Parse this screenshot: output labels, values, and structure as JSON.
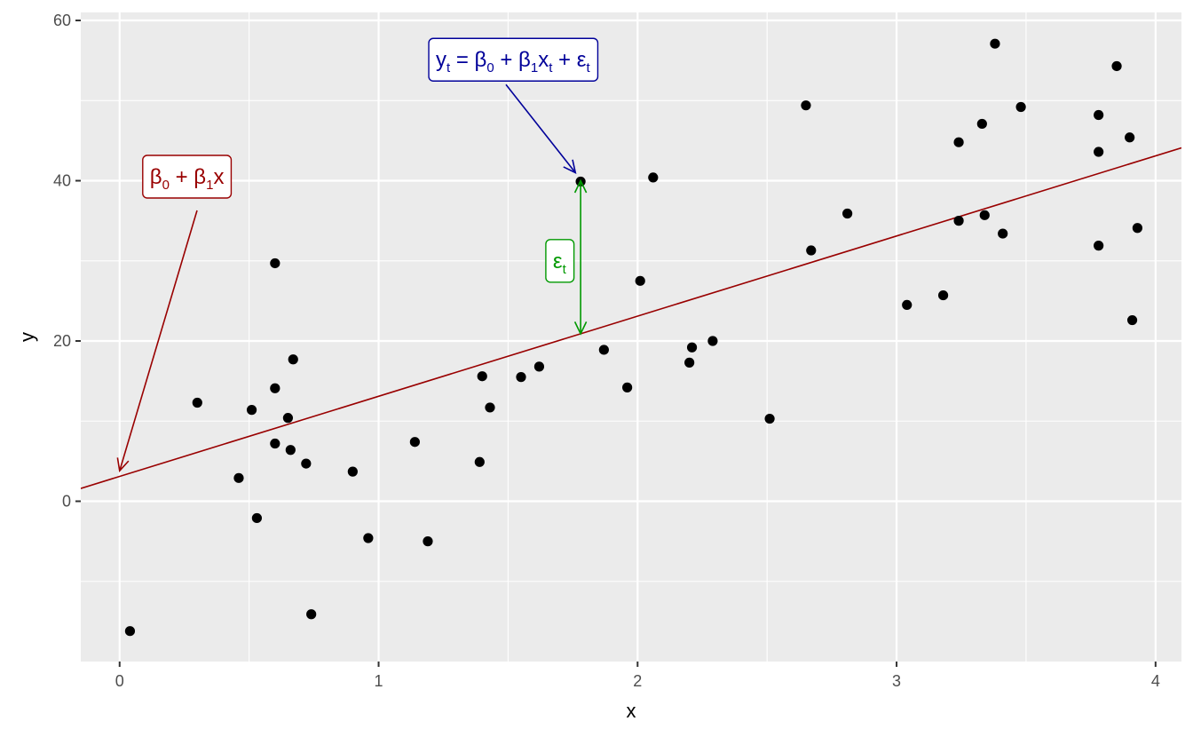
{
  "chart_data": {
    "type": "scatter",
    "title": "",
    "xlabel": "x",
    "ylabel": "y",
    "xlim": [
      -0.15,
      4.1
    ],
    "ylim": [
      -20,
      61
    ],
    "x_ticks": [
      0,
      1,
      2,
      3,
      4
    ],
    "y_ticks": [
      0,
      20,
      40,
      60
    ],
    "grid": true,
    "points": [
      {
        "x": 0.04,
        "y": -16.2
      },
      {
        "x": 0.3,
        "y": 12.3
      },
      {
        "x": 0.46,
        "y": 2.9
      },
      {
        "x": 0.51,
        "y": 11.4
      },
      {
        "x": 0.53,
        "y": -2.1
      },
      {
        "x": 0.6,
        "y": 29.7
      },
      {
        "x": 0.6,
        "y": 14.1
      },
      {
        "x": 0.6,
        "y": 7.2
      },
      {
        "x": 0.65,
        "y": 10.4
      },
      {
        "x": 0.66,
        "y": 6.4
      },
      {
        "x": 0.67,
        "y": 17.7
      },
      {
        "x": 0.72,
        "y": 4.7
      },
      {
        "x": 0.74,
        "y": -14.1
      },
      {
        "x": 0.9,
        "y": 3.7
      },
      {
        "x": 0.96,
        "y": -4.6
      },
      {
        "x": 1.14,
        "y": 7.4
      },
      {
        "x": 1.19,
        "y": -5.0
      },
      {
        "x": 1.39,
        "y": 4.9
      },
      {
        "x": 1.4,
        "y": 15.6
      },
      {
        "x": 1.43,
        "y": 11.7
      },
      {
        "x": 1.55,
        "y": 15.5
      },
      {
        "x": 1.62,
        "y": 16.8
      },
      {
        "x": 1.78,
        "y": 39.9
      },
      {
        "x": 1.87,
        "y": 18.9
      },
      {
        "x": 1.96,
        "y": 14.2
      },
      {
        "x": 2.01,
        "y": 27.5
      },
      {
        "x": 2.06,
        "y": 40.4
      },
      {
        "x": 2.2,
        "y": 17.3
      },
      {
        "x": 2.21,
        "y": 19.2
      },
      {
        "x": 2.29,
        "y": 20.0
      },
      {
        "x": 2.51,
        "y": 10.3
      },
      {
        "x": 2.65,
        "y": 49.4
      },
      {
        "x": 2.67,
        "y": 31.3
      },
      {
        "x": 2.81,
        "y": 35.9
      },
      {
        "x": 3.04,
        "y": 24.5
      },
      {
        "x": 3.18,
        "y": 25.7
      },
      {
        "x": 3.24,
        "y": 44.8
      },
      {
        "x": 3.24,
        "y": 35.0
      },
      {
        "x": 3.33,
        "y": 47.1
      },
      {
        "x": 3.34,
        "y": 35.7
      },
      {
        "x": 3.38,
        "y": 57.1
      },
      {
        "x": 3.41,
        "y": 33.4
      },
      {
        "x": 3.48,
        "y": 49.2
      },
      {
        "x": 3.78,
        "y": 48.2
      },
      {
        "x": 3.78,
        "y": 43.6
      },
      {
        "x": 3.78,
        "y": 31.9
      },
      {
        "x": 3.85,
        "y": 54.3
      },
      {
        "x": 3.9,
        "y": 45.4
      },
      {
        "x": 3.91,
        "y": 22.6
      },
      {
        "x": 3.93,
        "y": 34.1
      }
    ],
    "regression_line": {
      "intercept": 3.1,
      "slope": 10.0,
      "color": "#990000"
    },
    "annotations": {
      "model": {
        "parts": [
          {
            "t": "β",
            "sub": "0"
          },
          {
            "t": " + β",
            "sub": "1"
          },
          {
            "t": "x",
            "sub": ""
          }
        ],
        "color": "#990000",
        "label_x": 0.26,
        "label_y": 40.5,
        "arrow_to_x": 0.0,
        "arrow_to_y": 3.8
      },
      "observation": {
        "parts": [
          {
            "t": "y",
            "sub": "t"
          },
          {
            "t": " = β",
            "sub": "0"
          },
          {
            "t": " + β",
            "sub": "1"
          },
          {
            "t": "x",
            "sub": "t"
          },
          {
            "t": " + ε",
            "sub": "t"
          }
        ],
        "color": "#000099",
        "label_x": 1.52,
        "label_y": 55.1,
        "arrow_to_x": 1.76,
        "arrow_to_y": 41.0
      },
      "residual": {
        "parts": [
          {
            "t": "ε",
            "sub": "t"
          }
        ],
        "color": "#009900",
        "label_x": 1.7,
        "label_y": 30.0,
        "x": 1.78,
        "y_from": 40.0,
        "y_to": 20.9
      }
    },
    "colors": {
      "panel_bg": "#ebebeb",
      "grid_major": "#ffffff",
      "point": "#000000"
    }
  }
}
